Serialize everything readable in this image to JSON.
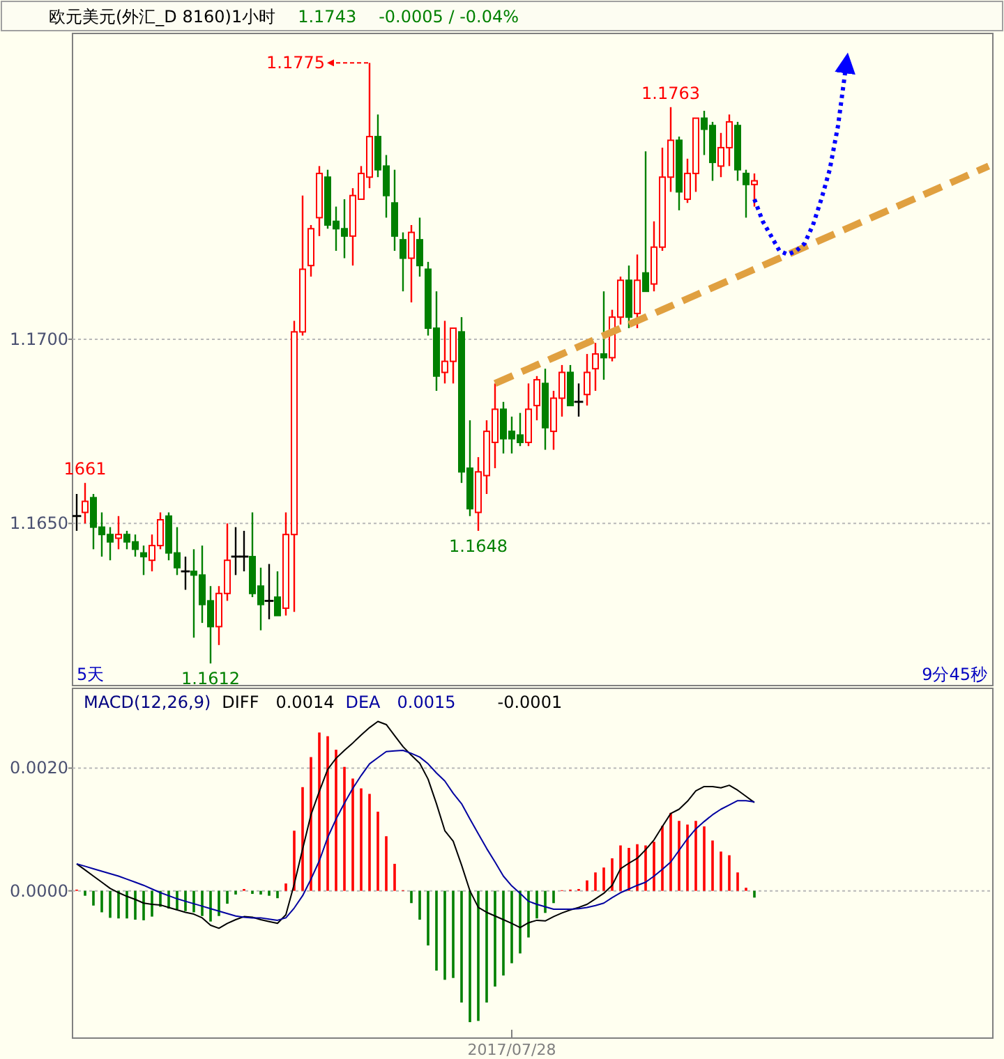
{
  "chart_data": [
    {
      "type": "candlestick",
      "title": "欧元美元(外汇_D 8160)1小时",
      "subtitle": "1.1743",
      "annotations": [
        "-0.0005 / -0.04%",
        "5天",
        "9分45秒",
        "1.1775",
        {
          "text": "1.1763",
          "y": 1.1763
        },
        {
          "text": "1.1648",
          "y": 1.1648
        },
        {
          "text": "1.1612",
          "y": 1.1612
        },
        {
          "text": "1661",
          "y": 1.1661
        }
      ],
      "categories": [
        null,
        null,
        null,
        null,
        null,
        null,
        null,
        null,
        null,
        null,
        null,
        null,
        null,
        null,
        null,
        null,
        null,
        null,
        null,
        null,
        null,
        null,
        null,
        null,
        null,
        null,
        null,
        null,
        null,
        null,
        null,
        null,
        null,
        null,
        null,
        null,
        null,
        null,
        null,
        null,
        null,
        null,
        null,
        null,
        null,
        null,
        null,
        null,
        null,
        null,
        null,
        null,
        null,
        null,
        null,
        null,
        null,
        null,
        null,
        null,
        null,
        null,
        null,
        null,
        null,
        null,
        null,
        null,
        null,
        null,
        null,
        null,
        null,
        null,
        null,
        null,
        null,
        null,
        null,
        null,
        null,
        null,
        null,
        null,
        null,
        null,
        null,
        null,
        null,
        null,
        null,
        null,
        null,
        null,
        null,
        null,
        null,
        null,
        null,
        null,
        null,
        null,
        null,
        null,
        null,
        null,
        null,
        null,
        null,
        null
      ],
      "ohlc": [
        [
          1.1652,
          1.1658,
          1.1648,
          1.1652
        ],
        [
          1.1653,
          1.1661,
          1.165,
          1.1656
        ],
        [
          1.1657,
          1.1658,
          1.1643,
          1.1649
        ],
        [
          1.1649,
          1.1653,
          1.1641,
          1.1647
        ],
        [
          1.1647,
          1.1649,
          1.164,
          1.1645
        ],
        [
          1.1646,
          1.1652,
          1.1643,
          1.1647
        ],
        [
          1.1647,
          1.1648,
          1.1643,
          1.1645
        ],
        [
          1.1645,
          1.1647,
          1.1641,
          1.1643
        ],
        [
          1.1642,
          1.1644,
          1.1636,
          1.1641
        ],
        [
          1.164,
          1.1647,
          1.1637,
          1.1644
        ],
        [
          1.1644,
          1.1653,
          1.1643,
          1.1651
        ],
        [
          1.1652,
          1.1653,
          1.164,
          1.1642
        ],
        [
          1.1642,
          1.1649,
          1.1636,
          1.1638
        ],
        [
          1.1637,
          1.1641,
          1.1632,
          1.1637
        ],
        [
          1.1637,
          1.1643,
          1.1619,
          1.1636
        ],
        [
          1.1636,
          1.1644,
          1.1623,
          1.1628
        ],
        [
          1.1629,
          1.1633,
          1.1612,
          1.1622
        ],
        [
          1.1622,
          1.1633,
          1.1617,
          1.1631
        ],
        [
          1.1631,
          1.165,
          1.1629,
          1.164
        ],
        [
          1.1641,
          1.1649,
          1.1636,
          1.1641
        ],
        [
          1.1641,
          1.1648,
          1.1637,
          1.1641
        ],
        [
          1.1641,
          1.1653,
          1.163,
          1.1631
        ],
        [
          1.1633,
          1.1638,
          1.1621,
          1.1628
        ],
        [
          1.1629,
          1.1639,
          1.1624,
          1.1629
        ],
        [
          1.163,
          1.1637,
          1.1625,
          1.1625
        ],
        [
          1.1627,
          1.1653,
          1.1625,
          1.1647
        ],
        [
          1.1647,
          1.1705,
          1.1626,
          1.1702
        ],
        [
          1.1702,
          1.1739,
          1.1701,
          1.1719
        ],
        [
          1.172,
          1.1731,
          1.1717,
          1.173
        ],
        [
          1.1733,
          1.1747,
          1.1728,
          1.1745
        ],
        [
          1.1744,
          1.1746,
          1.173,
          1.1731
        ],
        [
          1.1732,
          1.1736,
          1.1724,
          1.173
        ],
        [
          1.173,
          1.1738,
          1.1722,
          1.1728
        ],
        [
          1.1728,
          1.1741,
          1.172,
          1.1739
        ],
        [
          1.1738,
          1.1747,
          1.1738,
          1.1745
        ],
        [
          1.1744,
          1.1775,
          1.1741,
          1.1755
        ],
        [
          1.1755,
          1.1761,
          1.1744,
          1.1746
        ],
        [
          1.1747,
          1.175,
          1.1733,
          1.1739
        ],
        [
          1.1737,
          1.1746,
          1.1724,
          1.1728
        ],
        [
          1.1727,
          1.1729,
          1.1713,
          1.1722
        ],
        [
          1.1722,
          1.1731,
          1.171,
          1.1729
        ],
        [
          1.1727,
          1.1733,
          1.1717,
          1.172
        ],
        [
          1.1719,
          1.1721,
          1.1701,
          1.1703
        ],
        [
          1.1703,
          1.1713,
          1.1686,
          1.169
        ],
        [
          1.1691,
          1.1705,
          1.1688,
          1.1694
        ],
        [
          1.1694,
          1.1703,
          1.1688,
          1.1703
        ],
        [
          1.1702,
          1.1706,
          1.1661,
          1.1664
        ],
        [
          1.1665,
          1.1678,
          1.1652,
          1.1654
        ],
        [
          1.1653,
          1.1668,
          1.1648,
          1.1664
        ],
        [
          1.1663,
          1.1678,
          1.1658,
          1.1675
        ],
        [
          1.1672,
          1.1688,
          1.1665,
          1.1681
        ],
        [
          1.1681,
          1.1683,
          1.1669,
          1.1673
        ],
        [
          1.1675,
          1.1679,
          1.1669,
          1.1673
        ],
        [
          1.1674,
          1.168,
          1.1671,
          1.1672
        ],
        [
          1.1672,
          1.1688,
          1.1671,
          1.1681
        ],
        [
          1.1682,
          1.169,
          1.1678,
          1.1689
        ],
        [
          1.1688,
          1.1692,
          1.167,
          1.1676
        ],
        [
          1.1675,
          1.1686,
          1.167,
          1.1684
        ],
        [
          1.1684,
          1.1693,
          1.1679,
          1.1691
        ],
        [
          1.1691,
          1.1693,
          1.1682,
          1.1682
        ],
        [
          1.1683,
          1.1688,
          1.1679,
          1.1683
        ],
        [
          1.1685,
          1.1696,
          1.1682,
          1.1691
        ],
        [
          1.1692,
          1.1699,
          1.1686,
          1.1696
        ],
        [
          1.1696,
          1.1713,
          1.1689,
          1.1695
        ],
        [
          1.1695,
          1.1708,
          1.1694,
          1.1706
        ],
        [
          1.1706,
          1.1717,
          1.1704,
          1.1716
        ],
        [
          1.1716,
          1.172,
          1.1703,
          1.1706
        ],
        [
          1.1707,
          1.1723,
          1.1703,
          1.1716
        ],
        [
          1.1718,
          1.1751,
          1.1713,
          1.1713
        ],
        [
          1.1715,
          1.1732,
          1.1713,
          1.1725
        ],
        [
          1.1725,
          1.1752,
          1.1724,
          1.1744
        ],
        [
          1.1744,
          1.1763,
          1.174,
          1.1754
        ],
        [
          1.1754,
          1.1755,
          1.1735,
          1.174
        ],
        [
          1.1738,
          1.1749,
          1.1737,
          1.1745
        ],
        [
          1.1745,
          1.176,
          1.174,
          1.176
        ],
        [
          1.176,
          1.1762,
          1.175,
          1.1757
        ],
        [
          1.1758,
          1.1759,
          1.1743,
          1.1748
        ],
        [
          1.1747,
          1.1756,
          1.1744,
          1.1752
        ],
        [
          1.1752,
          1.1761,
          1.1747,
          1.1759
        ],
        [
          1.1758,
          1.1759,
          1.1743,
          1.1746
        ],
        [
          1.1745,
          1.1746,
          1.1733,
          1.1742
        ],
        [
          1.1742,
          1.1745,
          1.1736,
          1.1743
        ],
        null,
        null,
        null,
        null,
        null,
        null,
        null,
        null,
        null,
        null,
        null,
        null,
        null,
        null,
        null,
        null,
        null,
        null,
        null,
        null,
        null,
        null,
        null,
        null,
        null,
        null,
        null,
        null
      ],
      "colors": [
        "#000000",
        "#ff0000",
        "#008000",
        "#008000",
        "#008000",
        "#ff0000",
        "#008000",
        "#008000",
        "#008000",
        "#ff0000",
        "#ff0000",
        "#008000",
        "#008000",
        "#000000",
        "#008000",
        "#008000",
        "#008000",
        "#ff0000",
        "#ff0000",
        "#000000",
        "#000000",
        "#008000",
        "#008000",
        "#000000",
        "#008000",
        "#ff0000",
        "#ff0000",
        "#ff0000",
        "#ff0000",
        "#ff0000",
        "#008000",
        "#008000",
        "#008000",
        "#ff0000",
        "#ff0000",
        "#ff0000",
        "#008000",
        "#008000",
        "#008000",
        "#008000",
        "#ff0000",
        "#008000",
        "#008000",
        "#008000",
        "#ff0000",
        "#ff0000",
        "#008000",
        "#008000",
        "#ff0000",
        "#ff0000",
        "#ff0000",
        "#008000",
        "#008000",
        "#008000",
        "#ff0000",
        "#ff0000",
        "#008000",
        "#ff0000",
        "#ff0000",
        "#008000",
        "#000000",
        "#ff0000",
        "#ff0000",
        "#008000",
        "#ff0000",
        "#ff0000",
        "#008000",
        "#ff0000",
        "#008000",
        "#ff0000",
        "#ff0000",
        "#ff0000",
        "#008000",
        "#ff0000",
        "#ff0000",
        "#008000",
        "#008000",
        "#ff0000",
        "#ff0000",
        "#008000",
        "#008000",
        "#ff0000",
        null,
        null,
        null,
        null,
        null,
        null,
        null,
        null,
        null,
        null,
        null,
        null,
        null,
        null,
        null,
        null,
        null,
        null,
        null,
        null,
        null,
        null,
        null,
        null,
        null,
        null,
        null,
        null
      ],
      "series": [
        {
          "type": "line",
          "color": "#e0a040",
          "line_style": "dashed",
          "values": [
            null,
            null,
            null,
            null,
            null,
            null,
            null,
            null,
            null,
            null,
            null,
            null,
            null,
            null,
            null,
            null,
            null,
            null,
            null,
            null,
            null,
            null,
            null,
            null,
            null,
            null,
            null,
            null,
            null,
            null,
            null,
            null,
            null,
            null,
            null,
            null,
            null,
            null,
            null,
            null,
            null,
            null,
            null,
            null,
            null,
            null,
            null,
            null,
            null,
            null,
            1.1688,
            1.1689,
            1.169,
            1.1691,
            1.1692,
            1.1693,
            1.1694,
            1.1695,
            1.1696,
            1.1697,
            1.1698,
            1.1699,
            1.17,
            1.1701,
            1.1702,
            1.1703,
            1.1704,
            1.1705,
            1.1706,
            1.1707,
            1.1708,
            1.1709,
            1.171,
            1.1711,
            1.1712,
            1.1713,
            1.1714,
            1.1715,
            1.1716,
            1.1717,
            1.1718,
            1.1719,
            1.172,
            1.1721,
            1.1722,
            1.1723,
            1.1724,
            1.1725,
            1.1726,
            1.1727,
            1.1728,
            1.1729,
            1.173,
            1.1731,
            1.1732,
            1.1733,
            1.1734,
            1.1735,
            1.1736,
            1.1737,
            1.1738,
            1.1739,
            1.174,
            1.1741,
            1.1742,
            1.1743,
            1.1744,
            1.1745,
            1.1746,
            1.1747
          ]
        },
        {
          "type": "line",
          "color": "#0000ff",
          "line_style": "dotted",
          "values": [
            null,
            null,
            null,
            null,
            null,
            null,
            null,
            null,
            null,
            null,
            null,
            null,
            null,
            null,
            null,
            null,
            null,
            null,
            null,
            null,
            null,
            null,
            null,
            null,
            null,
            null,
            null,
            null,
            null,
            null,
            null,
            null,
            null,
            null,
            null,
            null,
            null,
            null,
            null,
            null,
            null,
            null,
            null,
            null,
            null,
            null,
            null,
            null,
            null,
            null,
            null,
            null,
            null,
            null,
            null,
            null,
            null,
            null,
            null,
            null,
            null,
            null,
            null,
            null,
            null,
            null,
            null,
            null,
            null,
            null,
            null,
            null,
            null,
            null,
            null,
            null,
            null,
            null,
            null,
            null,
            null,
            1.1738,
            1.1732,
            1.1728,
            1.1724,
            1.1723,
            1.1724,
            1.1726,
            1.1731,
            1.1738,
            1.1746,
            1.1758,
            1.1775,
            null,
            null,
            null,
            null,
            null,
            null,
            null,
            null,
            null,
            null,
            null,
            null,
            null,
            null,
            null,
            null,
            null
          ]
        }
      ],
      "ylim": [
        1.1606,
        1.1783
      ],
      "yticks": [
        {
          "value": 1.165,
          "label": "1.1650"
        },
        {
          "value": 1.17,
          "label": "1.1700"
        }
      ],
      "grid": "y",
      "tick_labels": "y"
    },
    {
      "type": "bar",
      "title": "MACD(12,26,9)",
      "annotations": [
        "0.0014",
        "0.0015",
        "-0.0001"
      ],
      "categories": [
        null,
        null,
        null,
        null,
        null,
        null,
        null,
        null,
        null,
        null,
        null,
        null,
        null,
        null,
        null,
        null,
        null,
        null,
        null,
        null,
        null,
        null,
        null,
        null,
        null,
        null,
        null,
        null,
        null,
        null,
        null,
        null,
        null,
        null,
        null,
        null,
        null,
        null,
        null,
        null,
        null,
        null,
        null,
        null,
        null,
        null,
        null,
        null,
        null,
        null,
        null,
        null,
        "2017/07/28",
        null,
        null,
        null,
        null,
        null,
        null,
        null,
        null,
        null,
        null,
        null,
        null,
        null,
        null,
        null,
        null,
        null,
        null,
        null,
        null,
        null,
        null,
        null,
        null,
        null,
        null,
        null,
        null,
        null,
        null,
        null,
        null,
        null,
        null,
        null,
        null,
        null,
        null,
        null,
        null,
        null,
        null,
        null,
        null,
        null,
        null,
        null,
        null,
        null,
        null,
        null,
        null,
        null,
        null,
        null,
        null,
        null
      ],
      "series": [
        {
          "type": "bar",
          "values": [
            2e-05,
            -8e-05,
            -0.00024,
            -0.00035,
            -0.00044,
            -0.00045,
            -0.00045,
            -0.00047,
            -0.00048,
            -0.00042,
            -0.00026,
            -0.00029,
            -0.0003,
            -0.00033,
            -0.00035,
            -0.00041,
            -0.0005,
            -0.00041,
            -0.00021,
            -6e-05,
            3e-05,
            -5e-05,
            -6e-05,
            -8e-05,
            -0.00012,
            0.00012,
            0.00098,
            0.00169,
            0.00218,
            0.00258,
            0.00252,
            0.0023,
            0.00202,
            0.00183,
            0.00167,
            0.00158,
            0.00129,
            0.00089,
            0.00044,
            1e-05,
            -0.0002,
            -0.00047,
            -0.00089,
            -0.0013,
            -0.00145,
            -0.00142,
            -0.00182,
            -0.00214,
            -0.00212,
            -0.00182,
            -0.00156,
            -0.00138,
            -0.00118,
            -0.00102,
            -0.00076,
            -0.00045,
            -0.00036,
            -0.0002,
            1e-05,
            2e-05,
            3e-05,
            0.00017,
            0.0003,
            0.00038,
            0.00053,
            0.00074,
            0.0007,
            0.00076,
            0.00074,
            0.0008,
            0.00106,
            0.00127,
            0.00114,
            0.00108,
            0.00114,
            0.00105,
            0.00082,
            0.00064,
            0.00058,
            0.0003,
            5e-05,
            -0.00011,
            null,
            null,
            null,
            null,
            null,
            null,
            null,
            null,
            null,
            null,
            null,
            null,
            null,
            null,
            null,
            null,
            null,
            null,
            null,
            null,
            null,
            null,
            null,
            null,
            null,
            null,
            null,
            null
          ],
          "colors": [
            "#ff0000",
            "#008000",
            "#008000",
            "#008000",
            "#008000",
            "#008000",
            "#008000",
            "#008000",
            "#008000",
            "#008000",
            "#008000",
            "#008000",
            "#008000",
            "#008000",
            "#008000",
            "#008000",
            "#008000",
            "#008000",
            "#008000",
            "#008000",
            "#ff0000",
            "#008000",
            "#008000",
            "#008000",
            "#008000",
            "#ff0000",
            "#ff0000",
            "#ff0000",
            "#ff0000",
            "#ff0000",
            "#ff0000",
            "#ff0000",
            "#ff0000",
            "#ff0000",
            "#ff0000",
            "#ff0000",
            "#ff0000",
            "#ff0000",
            "#ff0000",
            "#ff0000",
            "#008000",
            "#008000",
            "#008000",
            "#008000",
            "#008000",
            "#008000",
            "#008000",
            "#008000",
            "#008000",
            "#008000",
            "#008000",
            "#008000",
            "#008000",
            "#008000",
            "#008000",
            "#008000",
            "#008000",
            "#008000",
            "#ff0000",
            "#ff0000",
            "#ff0000",
            "#ff0000",
            "#ff0000",
            "#ff0000",
            "#ff0000",
            "#ff0000",
            "#ff0000",
            "#ff0000",
            "#ff0000",
            "#ff0000",
            "#ff0000",
            "#ff0000",
            "#ff0000",
            "#ff0000",
            "#ff0000",
            "#ff0000",
            "#ff0000",
            "#ff0000",
            "#ff0000",
            "#ff0000",
            "#ff0000",
            "#008000",
            null,
            null,
            null,
            null,
            null,
            null,
            null,
            null,
            null,
            null,
            null,
            null,
            null,
            null,
            null,
            null,
            null,
            null,
            null,
            null,
            null,
            null,
            null,
            null,
            null,
            null,
            null,
            null
          ]
        },
        {
          "type": "line",
          "name": "DIFF",
          "color": "#000000",
          "line_style": "solid",
          "values": [
            0.00044,
            0.00034,
            0.00024,
            0.00014,
            4e-05,
            -3e-05,
            -9e-05,
            -0.00014,
            -0.0002,
            -0.00022,
            -0.00023,
            -0.00027,
            -0.00031,
            -0.00035,
            -0.00038,
            -0.00044,
            -0.00056,
            -0.00061,
            -0.00053,
            -0.00047,
            -0.00042,
            -0.00043,
            -0.00047,
            -0.0005,
            -0.00053,
            -0.00039,
            0.00011,
            0.00068,
            0.00124,
            0.00162,
            0.00198,
            0.00216,
            0.00229,
            0.00241,
            0.00254,
            0.00266,
            0.00276,
            0.00271,
            0.00253,
            0.00235,
            0.00221,
            0.00208,
            0.00182,
            0.00142,
            0.00098,
            0.00081,
            0.00042,
            0.0,
            -0.00027,
            -0.00035,
            -0.00041,
            -0.00047,
            -0.00053,
            -0.0006,
            -0.00052,
            -0.00048,
            -0.00049,
            -0.00042,
            -0.00036,
            -0.00031,
            -0.00027,
            -0.00022,
            -0.00013,
            -4e-05,
            9e-05,
            0.00036,
            0.00045,
            0.00053,
            0.00067,
            0.00083,
            0.00105,
            0.00126,
            0.00133,
            0.00146,
            0.00163,
            0.0017,
            0.0017,
            0.00168,
            0.00172,
            0.00164,
            0.00154,
            0.00144,
            null,
            null,
            null,
            null,
            null,
            null,
            null,
            null,
            null,
            null,
            null,
            null,
            null,
            null,
            null,
            null,
            null,
            null,
            null,
            null,
            null,
            null,
            null,
            null,
            null,
            null,
            null,
            null
          ]
        },
        {
          "type": "line",
          "name": "DEA",
          "color": "#0000a0",
          "line_style": "solid",
          "values": [
            0.00044,
            0.0004,
            0.00036,
            0.00032,
            0.00028,
            0.00024,
            0.00019,
            0.00014,
            9e-05,
            3e-05,
            -3e-05,
            -8e-05,
            -0.00013,
            -0.00017,
            -0.00021,
            -0.00025,
            -0.00029,
            -0.00033,
            -0.00037,
            -0.00041,
            -0.00043,
            -0.00044,
            -0.00044,
            -0.00046,
            -0.00048,
            -0.00044,
            -0.00028,
            -8e-05,
            0.00019,
            0.00049,
            0.00087,
            0.00117,
            0.00143,
            0.00167,
            0.00188,
            0.00207,
            0.00217,
            0.00227,
            0.00228,
            0.00229,
            0.00224,
            0.00218,
            0.00207,
            0.00192,
            0.00179,
            0.00159,
            0.00142,
            0.00117,
            0.00093,
            0.00069,
            0.00047,
            0.00024,
            8e-05,
            -4e-05,
            -0.00017,
            -0.00022,
            -0.00026,
            -0.0003,
            -0.0003,
            -0.0003,
            -0.00029,
            -0.00027,
            -0.00024,
            -0.0002,
            -0.00011,
            -3e-05,
            3e-05,
            9e-05,
            0.00014,
            0.00024,
            0.00035,
            0.00047,
            0.00066,
            0.00085,
            0.00101,
            0.00113,
            0.00124,
            0.00133,
            0.0014,
            0.00147,
            0.00147,
            0.00145,
            null,
            null,
            null,
            null,
            null,
            null,
            null,
            null,
            null,
            null,
            null,
            null,
            null,
            null,
            null,
            null,
            null,
            null,
            null,
            null,
            null,
            null,
            null,
            null,
            null,
            null,
            null,
            null
          ]
        }
      ],
      "ylim": [
        -0.0024,
        0.0033
      ],
      "yticks": [
        {
          "value": 0,
          "label": "0.0000"
        },
        {
          "value": 0.002,
          "label": "0.0020"
        }
      ],
      "grid": "y"
    }
  ]
}
